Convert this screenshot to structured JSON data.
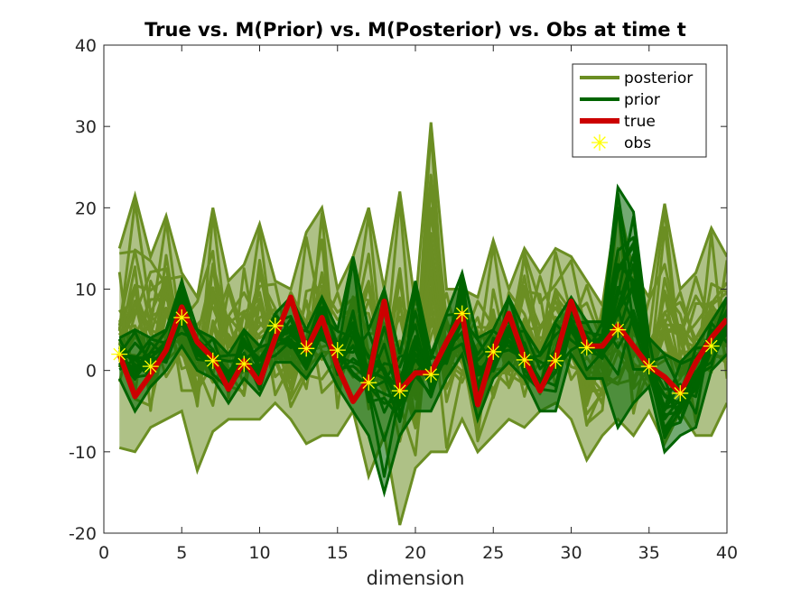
{
  "chart_data": {
    "type": "line",
    "title": "True vs. M(Prior) vs. M(Posterior) vs. Obs at time t",
    "xlabel": "dimension",
    "ylabel": "",
    "xlim": [
      0,
      40
    ],
    "ylim": [
      -20,
      40
    ],
    "xticks": [
      0,
      5,
      10,
      15,
      20,
      25,
      30,
      35,
      40
    ],
    "yticks": [
      -20,
      -10,
      0,
      10,
      20,
      30,
      40
    ],
    "legend_position": "top-right",
    "grid": false,
    "colors": {
      "posterior": "#6b8e23",
      "prior": "#006400",
      "true": "#cc0000",
      "obs": "#ffff00"
    },
    "legend": [
      "posterior",
      "prior",
      "true",
      "obs"
    ],
    "true": {
      "name": "true",
      "x": [
        1,
        2,
        3,
        4,
        5,
        6,
        7,
        8,
        9,
        10,
        11,
        12,
        13,
        14,
        15,
        16,
        17,
        18,
        19,
        20,
        21,
        22,
        23,
        24,
        25,
        26,
        27,
        28,
        29,
        30,
        31,
        32,
        33,
        34,
        35,
        36,
        37,
        38,
        39,
        40
      ],
      "values": [
        2.0,
        -3.2,
        -0.5,
        2.5,
        7.8,
        3.5,
        1.5,
        -2.3,
        1.2,
        -1.5,
        4.0,
        9.0,
        2.5,
        6.5,
        0.5,
        -3.8,
        -1.0,
        8.5,
        -2.5,
        -0.3,
        -0.3,
        3.5,
        7.0,
        -4.2,
        2.5,
        7.0,
        1.5,
        -2.5,
        1.5,
        8.5,
        3.0,
        3.0,
        5.5,
        3.0,
        0.5,
        -0.8,
        -2.8,
        1.0,
        4.0,
        6.3
      ]
    },
    "obs": {
      "name": "obs",
      "x": [
        1,
        3,
        5,
        7,
        9,
        11,
        13,
        15,
        17,
        19,
        21,
        23,
        25,
        27,
        29,
        31,
        33,
        35,
        37,
        39
      ],
      "values": [
        2.0,
        0.5,
        6.5,
        1.2,
        0.8,
        5.5,
        2.7,
        2.5,
        -1.5,
        -2.5,
        -0.5,
        7.0,
        2.3,
        1.3,
        1.2,
        2.8,
        5.0,
        0.5,
        -2.8,
        3.0
      ]
    },
    "posterior_summary": {
      "name": "posterior",
      "x": [
        1,
        2,
        3,
        4,
        5,
        6,
        7,
        8,
        9,
        10,
        11,
        12,
        13,
        14,
        15,
        16,
        17,
        18,
        19,
        20,
        21,
        22,
        23,
        24,
        25,
        26,
        27,
        28,
        29,
        30,
        31,
        32,
        33,
        34,
        35,
        36,
        37,
        38,
        39,
        40
      ],
      "upper": [
        15,
        21.5,
        14,
        19,
        12,
        9,
        20,
        11,
        13,
        18,
        11,
        10,
        17,
        20,
        10,
        14,
        20,
        10,
        22,
        8,
        30.5,
        10,
        10,
        9,
        16,
        10,
        15,
        12,
        15,
        14,
        11,
        8,
        21,
        12,
        9,
        20.5,
        10,
        12,
        17.5,
        14
      ],
      "lower": [
        -9.5,
        -10,
        -7,
        -6,
        -5,
        -12.3,
        -7.5,
        -6,
        -6,
        -6,
        -4,
        -6,
        -9,
        -8,
        -8,
        -5,
        -13,
        -8,
        -19,
        -12,
        -10,
        -10,
        -6,
        -10,
        -8,
        -6,
        -7,
        -5,
        -4,
        -6,
        -11,
        -8,
        -6,
        -8,
        -5,
        -9,
        -5,
        -8,
        -8,
        -4
      ]
    },
    "prior_summary": {
      "name": "prior",
      "x": [
        1,
        2,
        3,
        4,
        5,
        6,
        7,
        8,
        9,
        10,
        11,
        12,
        13,
        14,
        15,
        16,
        17,
        18,
        19,
        20,
        21,
        22,
        23,
        24,
        25,
        26,
        27,
        28,
        29,
        30,
        31,
        32,
        33,
        34,
        35,
        36,
        37,
        38,
        39,
        40
      ],
      "upper": [
        4,
        5,
        4,
        5,
        11,
        5,
        4,
        2,
        5,
        3,
        7,
        9,
        5,
        9,
        5,
        14,
        5,
        10,
        2,
        11,
        2,
        7,
        12,
        4,
        5,
        9,
        5,
        2,
        6,
        9,
        6,
        6,
        22.5,
        19.5,
        4,
        2,
        1,
        3,
        6,
        9
      ],
      "lower": [
        -1,
        -5,
        -2,
        0,
        3,
        0,
        -1,
        -4,
        -1,
        -3,
        1,
        1,
        -1,
        2,
        -2,
        -5,
        -8,
        -15,
        -8,
        -5,
        -5,
        -1,
        2,
        -6,
        -1,
        1,
        -1,
        -5,
        -5,
        2,
        -1,
        -1,
        -7,
        -4,
        -2,
        -10,
        -8,
        -7,
        0,
        2
      ]
    }
  }
}
